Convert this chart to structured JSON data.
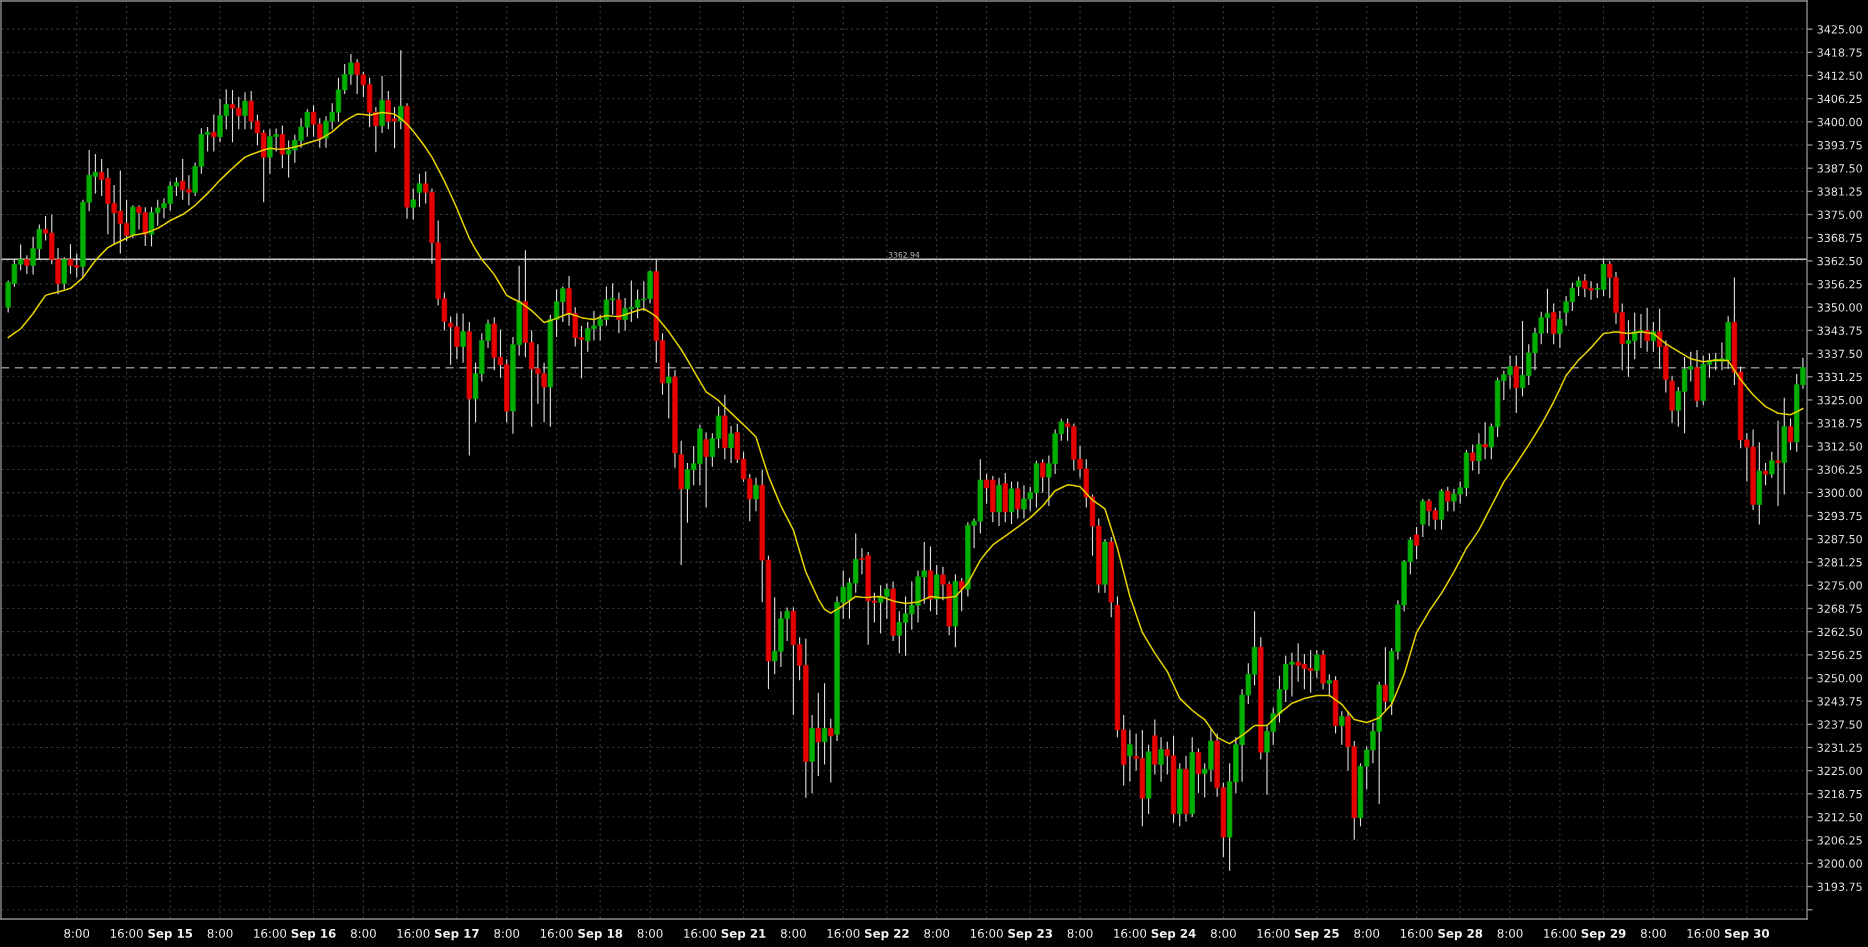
{
  "chart_data": {
    "type": "candlestick",
    "categories": [
      null,
      null,
      null,
      null,
      null,
      null,
      null,
      null,
      null,
      null,
      null,
      "8:00",
      null,
      null,
      null,
      null,
      null,
      null,
      null,
      "16:00",
      null,
      null,
      null,
      null,
      null,
      null,
      "Sep 15",
      null,
      null,
      null,
      null,
      null,
      null,
      null,
      "8:00",
      null,
      null,
      null,
      null,
      null,
      null,
      null,
      "16:00",
      null,
      null,
      null,
      null,
      null,
      null,
      "Sep 16",
      null,
      null,
      null,
      null,
      null,
      null,
      null,
      "8:00",
      null,
      null,
      null,
      null,
      null,
      null,
      null,
      "16:00",
      null,
      null,
      null,
      null,
      null,
      null,
      "Sep 17",
      null,
      null,
      null,
      null,
      null,
      null,
      null,
      "8:00",
      null,
      null,
      null,
      null,
      null,
      null,
      null,
      "16:00",
      null,
      null,
      null,
      null,
      null,
      null,
      "Sep 18",
      null,
      null,
      null,
      null,
      null,
      null,
      null,
      "8:00",
      null,
      null,
      null,
      null,
      null,
      null,
      null,
      "16:00",
      null,
      null,
      null,
      null,
      null,
      null,
      "Sep 21",
      null,
      null,
      null,
      null,
      null,
      null,
      null,
      "8:00",
      null,
      null,
      null,
      null,
      null,
      null,
      null,
      "16:00",
      null,
      null,
      null,
      null,
      null,
      null,
      "Sep 22",
      null,
      null,
      null,
      null,
      null,
      null,
      null,
      "8:00",
      null,
      null,
      null,
      null,
      null,
      null,
      null,
      "16:00",
      null,
      null,
      null,
      null,
      null,
      null,
      "Sep 23",
      null,
      null,
      null,
      null,
      null,
      null,
      null,
      "8:00",
      null,
      null,
      null,
      null,
      null,
      null,
      null,
      "16:00",
      null,
      null,
      null,
      null,
      null,
      null,
      "Sep 24",
      null,
      null,
      null,
      null,
      null,
      null,
      null,
      "8:00",
      null,
      null,
      null,
      null,
      null,
      null,
      null,
      "16:00",
      null,
      null,
      null,
      null,
      null,
      null,
      "Sep 25",
      null,
      null,
      null,
      null,
      null,
      null,
      null,
      "8:00",
      null,
      null,
      null,
      null,
      null,
      null,
      null,
      "16:00",
      null,
      null,
      null,
      null,
      null,
      null,
      "Sep 28",
      null,
      null,
      null,
      null,
      null,
      null,
      null,
      "8:00",
      null,
      null,
      null,
      null,
      null,
      null,
      null,
      "16:00",
      null,
      null,
      null,
      null,
      null,
      null,
      "Sep 29",
      null,
      null,
      null,
      null,
      null,
      null,
      null,
      "8:00",
      null,
      null,
      null,
      null,
      null,
      null,
      null,
      "16:00",
      null,
      null,
      null,
      null,
      null,
      null,
      "Sep 30",
      null,
      null,
      null,
      null,
      null,
      null,
      null,
      null,
      null
    ],
    "ohlc": [
      [
        3350,
        3357.2,
        3348.6,
        3356.7
      ],
      [
        3356.4,
        3362.9,
        3355.5,
        3361.6
      ],
      [
        3361.6,
        3366.9,
        3360,
        3362.9
      ],
      [
        3362.9,
        3364,
        3359,
        3361.3
      ],
      [
        3361.3,
        3369,
        3358.8,
        3365.8
      ],
      [
        3365.8,
        3372.3,
        3363,
        3371
      ],
      [
        3371,
        3374.6,
        3368,
        3370
      ],
      [
        3370,
        3375,
        3361.6,
        3362.9
      ],
      [
        3362.9,
        3366,
        3353.5,
        3356.4
      ],
      [
        3356.4,
        3363.5,
        3354.8,
        3362.9
      ],
      [
        3362.9,
        3367,
        3359,
        3361.3
      ],
      [
        3361.3,
        3364.5,
        3358,
        3360.8
      ],
      [
        3361,
        3379,
        3358,
        3378.3
      ],
      [
        3378.3,
        3392.4,
        3375.9,
        3385.6
      ],
      [
        3385.3,
        3391.3,
        3380.7,
        3386.4
      ],
      [
        3386.4,
        3390,
        3380,
        3384.5
      ],
      [
        3384.8,
        3387.5,
        3369.7,
        3378
      ],
      [
        3378,
        3383,
        3367,
        3375.5
      ],
      [
        3375.9,
        3386.9,
        3364.5,
        3372.6
      ],
      [
        3372.6,
        3379,
        3367.8,
        3369.4
      ],
      [
        3369.4,
        3377.5,
        3368.6,
        3377
      ],
      [
        3377,
        3377.5,
        3371,
        3375.5
      ],
      [
        3375.5,
        3377,
        3366.5,
        3369.7
      ],
      [
        3369.7,
        3377,
        3366.4,
        3375.5
      ],
      [
        3375.5,
        3379,
        3372,
        3376.8
      ],
      [
        3376.8,
        3379.4,
        3374,
        3378
      ],
      [
        3378,
        3384,
        3376,
        3382.7
      ],
      [
        3382.7,
        3385,
        3380,
        3383.6
      ],
      [
        3384,
        3390,
        3379,
        3381.7
      ],
      [
        3381.7,
        3385.6,
        3377.5,
        3381
      ],
      [
        3381,
        3389,
        3380,
        3388
      ],
      [
        3388,
        3398.3,
        3386,
        3396.6
      ],
      [
        3396.6,
        3398.6,
        3392,
        3397.2
      ],
      [
        3397.2,
        3402,
        3392,
        3396
      ],
      [
        3396,
        3406.2,
        3394.5,
        3401.7
      ],
      [
        3401.7,
        3408.8,
        3398,
        3404.7
      ],
      [
        3404.7,
        3408.6,
        3394.5,
        3403.7
      ],
      [
        3403.7,
        3406.7,
        3398,
        3401.7
      ],
      [
        3401.7,
        3408,
        3398,
        3405.6
      ],
      [
        3405.6,
        3408.3,
        3398,
        3400.2
      ],
      [
        3400.2,
        3402,
        3393.7,
        3397
      ],
      [
        3397,
        3397.8,
        3378.3,
        3390.5
      ],
      [
        3390.5,
        3398,
        3386,
        3396
      ],
      [
        3396,
        3398.2,
        3392,
        3396.6
      ],
      [
        3396.6,
        3399,
        3387.5,
        3391.3
      ],
      [
        3391.3,
        3395,
        3385,
        3392.4
      ],
      [
        3392.4,
        3396.5,
        3389,
        3395
      ],
      [
        3395,
        3401,
        3393,
        3398.6
      ],
      [
        3398.6,
        3403.4,
        3396,
        3402.6
      ],
      [
        3402.6,
        3404.5,
        3396,
        3399.4
      ],
      [
        3399.4,
        3401,
        3393,
        3395.6
      ],
      [
        3395.6,
        3401.5,
        3393,
        3400.2
      ],
      [
        3400.2,
        3405,
        3398,
        3402.6
      ],
      [
        3402.6,
        3411.9,
        3400,
        3408.6
      ],
      [
        3408.6,
        3415.6,
        3407.5,
        3412.8
      ],
      [
        3412.8,
        3418.3,
        3410,
        3415.9
      ],
      [
        3415.9,
        3416.9,
        3407.5,
        3412.7
      ],
      [
        3412.7,
        3413.5,
        3406.7,
        3410
      ],
      [
        3410,
        3411.9,
        3398.6,
        3402.6
      ],
      [
        3402.6,
        3404,
        3391.8,
        3399
      ],
      [
        3399,
        3412.4,
        3397,
        3405.8
      ],
      [
        3405.8,
        3408.3,
        3398,
        3400.2
      ],
      [
        3400.8,
        3404,
        3392.9,
        3400.2
      ],
      [
        3400.2,
        3419.3,
        3398,
        3404.2
      ],
      [
        3404.2,
        3405,
        3373.9,
        3377
      ],
      [
        3377,
        3382,
        3373.6,
        3379
      ],
      [
        3381,
        3386,
        3377,
        3383.3
      ],
      [
        3383.3,
        3386.6,
        3378,
        3381
      ],
      [
        3381,
        3382,
        3361.8,
        3367.4
      ],
      [
        3367.4,
        3373.4,
        3350.5,
        3352.3
      ],
      [
        3352.3,
        3354,
        3343.7,
        3346.2
      ],
      [
        3345.7,
        3347.5,
        3334.5,
        3344.7
      ],
      [
        3344.7,
        3348.3,
        3336,
        3339.4
      ],
      [
        3339.4,
        3348.3,
        3335,
        3343.4
      ],
      [
        3343.4,
        3346,
        3310,
        3325.3
      ],
      [
        3325.3,
        3335,
        3319,
        3332.1
      ],
      [
        3332.1,
        3343,
        3330,
        3341
      ],
      [
        3341,
        3346.7,
        3339,
        3345.5
      ],
      [
        3345.5,
        3347.3,
        3333,
        3336.5
      ],
      [
        3336.5,
        3344,
        3331,
        3334.5
      ],
      [
        3334.5,
        3336,
        3319,
        3322
      ],
      [
        3322,
        3342,
        3315.9,
        3339.9
      ],
      [
        3339.9,
        3361.2,
        3337,
        3351.5
      ],
      [
        3351.5,
        3365.4,
        3336.5,
        3340.5
      ],
      [
        3340.5,
        3343.7,
        3317.8,
        3333.4
      ],
      [
        3333.4,
        3340,
        3324,
        3332.1
      ],
      [
        3332.1,
        3335,
        3319,
        3328.5
      ],
      [
        3328.5,
        3348,
        3317.8,
        3346.7
      ],
      [
        3346.7,
        3354.8,
        3342,
        3351.5
      ],
      [
        3351.5,
        3355.6,
        3346,
        3355
      ],
      [
        3355,
        3358.4,
        3345,
        3348.3
      ],
      [
        3348.3,
        3350,
        3339.4,
        3341.8
      ],
      [
        3341.8,
        3345,
        3330.8,
        3341.3
      ],
      [
        3341,
        3346,
        3338,
        3344.2
      ],
      [
        3344.2,
        3349,
        3341,
        3345
      ],
      [
        3345,
        3348,
        3341,
        3346.7
      ],
      [
        3346.7,
        3355.6,
        3345,
        3352
      ],
      [
        3352,
        3356.5,
        3348,
        3352.3
      ],
      [
        3352,
        3354,
        3343,
        3346.7
      ],
      [
        3346.7,
        3352.5,
        3343.7,
        3349.6
      ],
      [
        3349.6,
        3357.2,
        3346,
        3350
      ],
      [
        3350,
        3354.8,
        3347,
        3352
      ],
      [
        3352,
        3357,
        3349,
        3352.2
      ],
      [
        3352.3,
        3360,
        3351,
        3359.6
      ],
      [
        3359.6,
        3362.9,
        3335,
        3341
      ],
      [
        3341,
        3343,
        3326.4,
        3329.6
      ],
      [
        3329.6,
        3335,
        3320,
        3331.2
      ],
      [
        3331.2,
        3333,
        3306.7,
        3310.7
      ],
      [
        3310.2,
        3314,
        3280.5,
        3301
      ],
      [
        3301,
        3308,
        3291.9,
        3306.2
      ],
      [
        3306.2,
        3312.6,
        3302,
        3307.8
      ],
      [
        3307.8,
        3318.3,
        3302,
        3317.2
      ],
      [
        3314.3,
        3316.3,
        3296,
        3309.7
      ],
      [
        3309.7,
        3316,
        3307,
        3314.6
      ],
      [
        3314.6,
        3323.2,
        3312,
        3320.7
      ],
      [
        3320.7,
        3326.4,
        3309,
        3312.1
      ],
      [
        3312.1,
        3318,
        3308,
        3315.9
      ],
      [
        3316.2,
        3318.6,
        3308,
        3309
      ],
      [
        3309,
        3311,
        3302.9,
        3303.7
      ],
      [
        3303.7,
        3305,
        3292.3,
        3298.3
      ],
      [
        3298.3,
        3304,
        3295,
        3302
      ],
      [
        3302,
        3306.2,
        3270.4,
        3281.8
      ],
      [
        3281.8,
        3283,
        3247,
        3254.6
      ],
      [
        3254.6,
        3271.8,
        3251,
        3257.2
      ],
      [
        3257.2,
        3268,
        3253,
        3266
      ],
      [
        3266,
        3269,
        3260,
        3268
      ],
      [
        3268,
        3269,
        3240,
        3259
      ],
      [
        3259,
        3261,
        3249.4,
        3253.4
      ],
      [
        3253.4,
        3260.6,
        3217.7,
        3227.5
      ],
      [
        3227.5,
        3240,
        3218.9,
        3236.4
      ],
      [
        3236.4,
        3246,
        3223.6,
        3232.8
      ],
      [
        3232.8,
        3248.6,
        3226.7,
        3236.4
      ],
      [
        3236.4,
        3239,
        3221.8,
        3234.4
      ],
      [
        3234.8,
        3272,
        3233,
        3270.4
      ],
      [
        3270.4,
        3279,
        3266,
        3274.5
      ],
      [
        3271,
        3277,
        3266,
        3275.6
      ],
      [
        3275.6,
        3289,
        3273,
        3282
      ],
      [
        3282.3,
        3285,
        3278,
        3282
      ],
      [
        3283,
        3284,
        3259,
        3270.8
      ],
      [
        3270.8,
        3273,
        3265,
        3270.4
      ],
      [
        3270.4,
        3275,
        3262,
        3272
      ],
      [
        3272,
        3275.5,
        3266,
        3274
      ],
      [
        3274,
        3276,
        3260,
        3261.5
      ],
      [
        3261.5,
        3268,
        3256.7,
        3265
      ],
      [
        3265,
        3272,
        3256,
        3267.3
      ],
      [
        3267.3,
        3276,
        3263,
        3269.6
      ],
      [
        3269.6,
        3279,
        3265,
        3277.3
      ],
      [
        3277.3,
        3286.7,
        3270,
        3278.9
      ],
      [
        3278.9,
        3285.5,
        3268,
        3271.3
      ],
      [
        3271.3,
        3280.5,
        3267,
        3277.8
      ],
      [
        3277.8,
        3280,
        3271,
        3275.3
      ],
      [
        3275.3,
        3276,
        3261.5,
        3264
      ],
      [
        3264,
        3278,
        3258.3,
        3276.1
      ],
      [
        3276.1,
        3277,
        3268,
        3274
      ],
      [
        3274,
        3292,
        3272,
        3291.2
      ],
      [
        3291.2,
        3293,
        3285,
        3292.3
      ],
      [
        3292.3,
        3309,
        3289,
        3303.4
      ],
      [
        3303.4,
        3305,
        3297,
        3301.3
      ],
      [
        3303.4,
        3304.5,
        3292,
        3294.8
      ],
      [
        3294.8,
        3304,
        3291,
        3302
      ],
      [
        3302.4,
        3305.3,
        3292,
        3294.8
      ],
      [
        3294.8,
        3303,
        3291.5,
        3301
      ],
      [
        3301,
        3303,
        3293,
        3295.6
      ],
      [
        3295.6,
        3302,
        3293,
        3298.3
      ],
      [
        3298.3,
        3301.6,
        3295,
        3300
      ],
      [
        3300,
        3308.6,
        3296,
        3307.8
      ],
      [
        3308,
        3309,
        3300,
        3304.2
      ],
      [
        3304.2,
        3310,
        3296.4,
        3307.8
      ],
      [
        3307.8,
        3317,
        3305,
        3315.9
      ],
      [
        3315.9,
        3319.9,
        3314,
        3319.1
      ],
      [
        3318.6,
        3320,
        3314,
        3317.8
      ],
      [
        3317.8,
        3318.6,
        3306,
        3309
      ],
      [
        3309,
        3312.6,
        3304,
        3306.4
      ],
      [
        3306.4,
        3309,
        3296,
        3298.8
      ],
      [
        3298.8,
        3299.5,
        3283,
        3291
      ],
      [
        3291,
        3293,
        3273,
        3275.3
      ],
      [
        3275.3,
        3287.5,
        3273,
        3286.7
      ],
      [
        3286.7,
        3288,
        3266.4,
        3270.5
      ],
      [
        3269.6,
        3272,
        3234,
        3236
      ],
      [
        3236,
        3240,
        3221,
        3226.7
      ],
      [
        3229,
        3236,
        3222,
        3232
      ],
      [
        3228.8,
        3235,
        3225,
        3228.3
      ],
      [
        3228.3,
        3236,
        3210,
        3217.6
      ],
      [
        3217.6,
        3232,
        3213.3,
        3230.1
      ],
      [
        3234.4,
        3238.8,
        3224,
        3226.7
      ],
      [
        3226.7,
        3234,
        3222,
        3230.7
      ],
      [
        3230.7,
        3232.8,
        3224,
        3229
      ],
      [
        3229,
        3234.4,
        3211,
        3213.4
      ],
      [
        3213.4,
        3227,
        3210,
        3225.4
      ],
      [
        3225.4,
        3229,
        3211.3,
        3213.4
      ],
      [
        3213.4,
        3234,
        3212.5,
        3229.9
      ],
      [
        3229.9,
        3231,
        3219,
        3224.2
      ],
      [
        3224.2,
        3227,
        3217.8,
        3225.4
      ],
      [
        3225.4,
        3236.4,
        3222,
        3233
      ],
      [
        3233,
        3235,
        3218,
        3220.4
      ],
      [
        3220.4,
        3221.8,
        3201.7,
        3207.1
      ],
      [
        3207.1,
        3227,
        3198,
        3222
      ],
      [
        3222,
        3234,
        3219,
        3232
      ],
      [
        3232,
        3247,
        3222,
        3245.4
      ],
      [
        3245.4,
        3254,
        3243,
        3251
      ],
      [
        3251,
        3268,
        3248,
        3258.3
      ],
      [
        3258.3,
        3261,
        3228,
        3230
      ],
      [
        3230,
        3237,
        3218.5,
        3235.6
      ],
      [
        3235.6,
        3242,
        3232,
        3240.4
      ],
      [
        3240.4,
        3250.6,
        3238,
        3246.9
      ],
      [
        3246.9,
        3256,
        3243.5,
        3253.7
      ],
      [
        3253.7,
        3256.8,
        3245,
        3254.3
      ],
      [
        3254.3,
        3259.4,
        3249,
        3253.4
      ],
      [
        3253.7,
        3256.5,
        3247,
        3252.6
      ],
      [
        3252.6,
        3257.5,
        3246,
        3252
      ],
      [
        3252,
        3257.5,
        3250,
        3256.2
      ],
      [
        3256.2,
        3257.5,
        3247,
        3248.6
      ],
      [
        3248.6,
        3251,
        3245,
        3249.3
      ],
      [
        3249.3,
        3250.5,
        3235,
        3237.2
      ],
      [
        3237.2,
        3241,
        3232,
        3239.6
      ],
      [
        3239.6,
        3241,
        3225,
        3231.5
      ],
      [
        3231.5,
        3233,
        3206.4,
        3212.3
      ],
      [
        3212.3,
        3227,
        3210,
        3226.2
      ],
      [
        3226.2,
        3231.5,
        3220,
        3230.6
      ],
      [
        3230.6,
        3238,
        3227,
        3235.6
      ],
      [
        3235.6,
        3249,
        3216,
        3248.1
      ],
      [
        3248.1,
        3258.3,
        3241,
        3243.7
      ],
      [
        3243.7,
        3258,
        3240,
        3257.2
      ],
      [
        3257.2,
        3271,
        3255,
        3269.7
      ],
      [
        3269.7,
        3281.8,
        3268,
        3281.4
      ],
      [
        3281.4,
        3288,
        3278,
        3287.2
      ],
      [
        3288.6,
        3290.7,
        3282,
        3285.8
      ],
      [
        3291.5,
        3298.3,
        3288,
        3297.7
      ],
      [
        3297.7,
        3298.3,
        3291,
        3295.1
      ],
      [
        3295.1,
        3296,
        3290,
        3292.8
      ],
      [
        3292.8,
        3301,
        3290,
        3300.4
      ],
      [
        3300.4,
        3301.6,
        3295,
        3297.7
      ],
      [
        3297.7,
        3301,
        3295,
        3299.6
      ],
      [
        3299.6,
        3303,
        3297,
        3301.3
      ],
      [
        3301.3,
        3311.5,
        3299,
        3310.7
      ],
      [
        3310.7,
        3313,
        3306,
        3308.6
      ],
      [
        3308.6,
        3316,
        3305,
        3313
      ],
      [
        3313,
        3319,
        3309,
        3312.3
      ],
      [
        3312.3,
        3318.6,
        3309,
        3317.8
      ],
      [
        3317.8,
        3331,
        3315,
        3330.2
      ],
      [
        3330.2,
        3332.9,
        3325,
        3331.8
      ],
      [
        3331.8,
        3337,
        3328,
        3334
      ],
      [
        3334,
        3337,
        3321.5,
        3328.3
      ],
      [
        3328.3,
        3346.3,
        3326,
        3331.6
      ],
      [
        3331.6,
        3340,
        3329,
        3337.7
      ],
      [
        3337.7,
        3344.5,
        3333,
        3343
      ],
      [
        3343,
        3348.8,
        3340,
        3347.2
      ],
      [
        3347.2,
        3355,
        3343,
        3348.3
      ],
      [
        3348.6,
        3351,
        3340,
        3342.9
      ],
      [
        3342.9,
        3349,
        3339,
        3346.7
      ],
      [
        3348.6,
        3353,
        3345,
        3351.5
      ],
      [
        3351.5,
        3356.7,
        3349,
        3355.1
      ],
      [
        3355.6,
        3358.2,
        3353,
        3357.1
      ],
      [
        3357.1,
        3359,
        3352.7,
        3355.1
      ],
      [
        3355.1,
        3357,
        3352,
        3354.6
      ],
      [
        3354.8,
        3356.5,
        3352.5,
        3355.1
      ],
      [
        3354.8,
        3363.2,
        3353,
        3361.6
      ],
      [
        3361.6,
        3362.5,
        3352.5,
        3358
      ],
      [
        3358,
        3359.5,
        3345.5,
        3348.6
      ],
      [
        3348.6,
        3351,
        3333,
        3340.2
      ],
      [
        3340.2,
        3346.5,
        3331.2,
        3341
      ],
      [
        3341,
        3348.5,
        3336,
        3343.4
      ],
      [
        3343.4,
        3348.2,
        3339,
        3343.7
      ],
      [
        3343.7,
        3349.8,
        3338,
        3341
      ],
      [
        3341,
        3346,
        3338,
        3343.4
      ],
      [
        3343.4,
        3349.6,
        3333.4,
        3339.4
      ],
      [
        3339.4,
        3341,
        3327,
        3330.5
      ],
      [
        3330.1,
        3331.5,
        3318.7,
        3322.2
      ],
      [
        3322.2,
        3328.5,
        3317.8,
        3327.3
      ],
      [
        3327.3,
        3336.6,
        3316,
        3333.3
      ],
      [
        3333.3,
        3338,
        3330,
        3334
      ],
      [
        3333.7,
        3338.5,
        3323,
        3324.8
      ],
      [
        3324.8,
        3337,
        3323.6,
        3334.6
      ],
      [
        3334.6,
        3337.6,
        3331,
        3335.7
      ],
      [
        3335.4,
        3337.7,
        3333,
        3336
      ],
      [
        3335.4,
        3340.5,
        3333,
        3336.1
      ],
      [
        3335.7,
        3347.6,
        3333.4,
        3345.9
      ],
      [
        3345.9,
        3358,
        3329,
        3332.5
      ],
      [
        3332.5,
        3334,
        3312,
        3314.2
      ],
      [
        3314.2,
        3316,
        3303,
        3312.3
      ],
      [
        3312.3,
        3317,
        3295.3,
        3296.8
      ],
      [
        3296.8,
        3313.6,
        3291.4,
        3305.8
      ],
      [
        3305.8,
        3308,
        3302,
        3305
      ],
      [
        3305,
        3311,
        3304,
        3308.6
      ],
      [
        3308.6,
        3319.4,
        3296.4,
        3308.1
      ],
      [
        3308.1,
        3325.6,
        3299.5,
        3317.8
      ],
      [
        3317.8,
        3320,
        3311.5,
        3313.7
      ],
      [
        3313.7,
        3332,
        3311,
        3329.1
      ],
      [
        3329.1,
        3336.4,
        3328,
        3333.7
      ]
    ],
    "colors": [
      "#00b000",
      "#00b000",
      "#00b000",
      "#e60000",
      "#00b000",
      "#00b000",
      "#e60000",
      "#e60000",
      "#e60000",
      "#00b000",
      "#e60000",
      "#e60000",
      "#00b000",
      "#00b000",
      "#00b000",
      "#e60000",
      "#e60000",
      "#e60000",
      "#e60000",
      "#e60000",
      "#00b000",
      "#e60000",
      "#e60000",
      "#00b000",
      "#00b000",
      "#00b000",
      "#00b000",
      "#00b000",
      "#e60000",
      "#e60000",
      "#00b000",
      "#00b000",
      "#00b000",
      "#e60000",
      "#00b000",
      "#00b000",
      "#e60000",
      "#e60000",
      "#00b000",
      "#e60000",
      "#e60000",
      "#e60000",
      "#00b000",
      "#00b000",
      "#e60000",
      "#00b000",
      "#00b000",
      "#00b000",
      "#00b000",
      "#e60000",
      "#e60000",
      "#00b000",
      "#00b000",
      "#00b000",
      "#00b000",
      "#00b000",
      "#e60000",
      "#e60000",
      "#e60000",
      "#e60000",
      "#00b000",
      "#e60000",
      "#e60000",
      "#00b000",
      "#e60000",
      "#00b000",
      "#00b000",
      "#e60000",
      "#e60000",
      "#e60000",
      "#e60000",
      "#e60000",
      "#e60000",
      "#00b000",
      "#e60000",
      "#00b000",
      "#00b000",
      "#00b000",
      "#e60000",
      "#e60000",
      "#e60000",
      "#00b000",
      "#00b000",
      "#e60000",
      "#e60000",
      "#e60000",
      "#e60000",
      "#00b000",
      "#00b000",
      "#00b000",
      "#e60000",
      "#e60000",
      "#e60000",
      "#00b000",
      "#00b000",
      "#00b000",
      "#00b000",
      "#00b000",
      "#e60000",
      "#00b000",
      "#00b000",
      "#00b000",
      "#00b000",
      "#00b000",
      "#e60000",
      "#e60000",
      "#00b000",
      "#e60000",
      "#e60000",
      "#00b000",
      "#00b000",
      "#00b000",
      "#e60000",
      "#00b000",
      "#00b000",
      "#e60000",
      "#00b000",
      "#e60000",
      "#e60000",
      "#e60000",
      "#00b000",
      "#e60000",
      "#e60000",
      "#00b000",
      "#00b000",
      "#00b000",
      "#e60000",
      "#e60000",
      "#e60000",
      "#00b000",
      "#e60000",
      "#00b000",
      "#e60000",
      "#00b000",
      "#00b000",
      "#00b000",
      "#00b000",
      "#e60000",
      "#e60000",
      "#e60000",
      "#00b000",
      "#00b000",
      "#e60000",
      "#00b000",
      "#00b000",
      "#00b000",
      "#00b000",
      "#00b000",
      "#e60000",
      "#00b000",
      "#e60000",
      "#e60000",
      "#00b000",
      "#e60000",
      "#00b000",
      "#00b000",
      "#00b000",
      "#e60000",
      "#e60000",
      "#00b000",
      "#e60000",
      "#00b000",
      "#e60000",
      "#00b000",
      "#00b000",
      "#00b000",
      "#e60000",
      "#00b000",
      "#00b000",
      "#00b000",
      "#e60000",
      "#e60000",
      "#e60000",
      "#e60000",
      "#e60000",
      "#e60000",
      "#00b000",
      "#e60000",
      "#e60000",
      "#e60000",
      "#00b000",
      "#e60000",
      "#e60000",
      "#00b000",
      "#e60000",
      "#00b000",
      "#e60000",
      "#e60000",
      "#00b000",
      "#e60000",
      "#00b000",
      "#e60000",
      "#00b000",
      "#00b000",
      "#e60000",
      "#e60000",
      "#00b000",
      "#00b000",
      "#00b000",
      "#00b000",
      "#00b000",
      "#e60000",
      "#00b000",
      "#00b000",
      "#00b000",
      "#00b000",
      "#00b000",
      "#e60000",
      "#e60000",
      "#e60000",
      "#00b000",
      "#e60000",
      "#00b000",
      "#e60000",
      "#00b000",
      "#e60000",
      "#e60000",
      "#00b000",
      "#00b000",
      "#00b000",
      "#00b000",
      "#e60000",
      "#00b000",
      "#00b000",
      "#00b000",
      "#00b000",
      "#e60000",
      "#00b000",
      "#e60000",
      "#e60000",
      "#00b000",
      "#e60000",
      "#00b000",
      "#00b000",
      "#00b000",
      "#e60000",
      "#00b000",
      "#e60000",
      "#00b000",
      "#00b000",
      "#00b000",
      "#00b000",
      "#e60000",
      "#00b000",
      "#00b000",
      "#00b000",
      "#00b000",
      "#00b000",
      "#e60000",
      "#00b000",
      "#00b000",
      "#00b000",
      "#00b000",
      "#e60000",
      "#e60000",
      "#00b000",
      "#00b000",
      "#e60000",
      "#e60000",
      "#e60000",
      "#00b000",
      "#00b000",
      "#00b000",
      "#e60000",
      "#00b000",
      "#e60000",
      "#e60000",
      "#e60000",
      "#00b000",
      "#00b000",
      "#00b000",
      "#e60000",
      "#00b000",
      "#00b000",
      "#00b000",
      "#00b000",
      "#00b000",
      "#e60000",
      "#e60000",
      "#e60000",
      "#e60000",
      "#00b000",
      "#e60000",
      "#00b000",
      "#e60000",
      "#00b000",
      "#e60000",
      "#00b000",
      "#00b000"
    ],
    "series": [
      {
        "type": "line",
        "color": "#e6d200",
        "values": [
          3341.8,
          3343.0,
          3344.2,
          3346.2,
          3348.3,
          3350.8,
          3353.2,
          3353.7,
          3354.1,
          3354.6,
          3355.1,
          3356.5,
          3358.0,
          3360.3,
          3362.6,
          3364.4,
          3366.1,
          3367.0,
          3367.8,
          3368.6,
          3369.4,
          3369.7,
          3370.0,
          3370.6,
          3371.3,
          3372.3,
          3373.4,
          3374.2,
          3375.0,
          3376.2,
          3377.5,
          3379.1,
          3380.7,
          3382.5,
          3384.3,
          3385.9,
          3387.5,
          3389.0,
          3390.5,
          3391.2,
          3391.8,
          3392.4,
          3392.9,
          3392.7,
          3392.6,
          3392.9,
          3393.2,
          3393.7,
          3394.3,
          3394.8,
          3395.3,
          3396.3,
          3397.3,
          3398.8,
          3400.2,
          3401.2,
          3402.1,
          3402.0,
          3401.8,
          3402.2,
          3402.5,
          3402.3,
          3402.1,
          3400.9,
          3399.4,
          3397.5,
          3395.3,
          3393.0,
          3390.5,
          3387.3,
          3384.0,
          3380.4,
          3376.7,
          3372.6,
          3368.6,
          3365.6,
          3362.9,
          3360.9,
          3358.8,
          3356.0,
          3353.2,
          3352.3,
          3351.5,
          3350.3,
          3349.1,
          3347.5,
          3345.9,
          3346.4,
          3347.0,
          3347.7,
          3348.3,
          3347.8,
          3347.2,
          3346.9,
          3346.7,
          3347.3,
          3347.8,
          3347.6,
          3347.5,
          3348.0,
          3348.6,
          3349.1,
          3349.6,
          3348.6,
          3347.5,
          3345.5,
          3343.4,
          3341.0,
          3338.6,
          3335.8,
          3332.9,
          3330.0,
          3327.2,
          3326.0,
          3324.8,
          3323.1,
          3321.5,
          3319.9,
          3318.3,
          3316.7,
          3315.0,
          3309.7,
          3304.5,
          3300.4,
          3296.4,
          3293.2,
          3289.9,
          3284.2,
          3278.6,
          3274.9,
          3271.3,
          3268.5,
          3267.5,
          3268.5,
          3269.6,
          3270.8,
          3272.0,
          3271.8,
          3271.7,
          3271.9,
          3272.0,
          3271.4,
          3270.8,
          3270.4,
          3270.1,
          3270.3,
          3270.5,
          3271.2,
          3272.0,
          3271.8,
          3271.6,
          3271.8,
          3272.0,
          3273.8,
          3275.6,
          3278.7,
          3281.8,
          3283.9,
          3285.9,
          3287.1,
          3288.3,
          3289.5,
          3290.7,
          3292.0,
          3293.2,
          3294.8,
          3296.4,
          3298.4,
          3300.5,
          3301.3,
          3302.1,
          3301.9,
          3301.6,
          3299.8,
          3298.0,
          3296.8,
          3295.6,
          3290.3,
          3285.0,
          3278.5,
          3272.0,
          3267.1,
          3262.3,
          3259.5,
          3256.7,
          3254.2,
          3251.8,
          3248.1,
          3244.5,
          3242.9,
          3241.3,
          3240.0,
          3238.8,
          3236.4,
          3234.0,
          3233.1,
          3232.3,
          3233.4,
          3234.5,
          3235.8,
          3237.2,
          3237.2,
          3237.2,
          3238.8,
          3240.5,
          3241.8,
          3243.2,
          3243.8,
          3244.5,
          3244.9,
          3245.3,
          3245.3,
          3245.3,
          3244.1,
          3242.9,
          3240.8,
          3238.8,
          3238.4,
          3238.0,
          3238.6,
          3239.3,
          3241.1,
          3242.9,
          3246.9,
          3251.0,
          3256.6,
          3262.3,
          3265.1,
          3268.0,
          3270.4,
          3272.9,
          3275.7,
          3278.6,
          3281.8,
          3285.0,
          3287.4,
          3289.9,
          3293.1,
          3296.4,
          3299.6,
          3302.9,
          3305.3,
          3307.8,
          3310.3,
          3312.9,
          3315.6,
          3318.3,
          3321.4,
          3324.5,
          3328.0,
          3331.6,
          3333.7,
          3335.8,
          3337.4,
          3339.1,
          3341.0,
          3342.9,
          3343.1,
          3343.4,
          3343.1,
          3342.9,
          3343.1,
          3343.4,
          3343.1,
          3342.9,
          3341.5,
          3340.2,
          3339.1,
          3338.1,
          3337.1,
          3336.1,
          3335.7,
          3335.3,
          3335.5,
          3335.8,
          3335.7,
          3335.6,
          3333.0,
          3330.5,
          3328.4,
          3326.4,
          3324.8,
          3323.2,
          3322.3,
          3321.4,
          3321.2,
          3321.0,
          3321.8,
          3322.7
        ]
      }
    ],
    "ylim": [
      3185,
      3432.6
    ],
    "yticks": [
      {
        "value": 3187.5,
        "label": null
      },
      3193.75,
      {
        "value": 3200,
        "label": "3200.00"
      },
      3206.25,
      {
        "value": 3212.5,
        "label": "3212.50"
      },
      3218.75,
      {
        "value": 3225,
        "label": "3225.00"
      },
      3231.25,
      {
        "value": 3237.5,
        "label": "3237.50"
      },
      3243.75,
      {
        "value": 3250,
        "label": "3250.00"
      },
      3256.25,
      {
        "value": 3262.5,
        "label": "3262.50"
      },
      3268.75,
      {
        "value": 3275,
        "label": "3275.00"
      },
      3281.25,
      {
        "value": 3287.5,
        "label": "3287.50"
      },
      3293.75,
      {
        "value": 3300,
        "label": "3300.00"
      },
      3306.25,
      {
        "value": 3312.5,
        "label": "3312.50"
      },
      3318.75,
      {
        "value": 3325,
        "label": "3325.00"
      },
      3331.25,
      {
        "value": 3337.5,
        "label": "3337.50"
      },
      3343.75,
      {
        "value": 3350,
        "label": "3350.00"
      },
      3356.25,
      {
        "value": 3362.5,
        "label": "3362.50"
      },
      3368.75,
      {
        "value": 3375,
        "label": "3375.00"
      },
      3381.25,
      {
        "value": 3387.5,
        "label": "3387.50"
      },
      3393.75,
      {
        "value": 3400,
        "label": "3400.00"
      },
      3406.25,
      {
        "value": 3412.5,
        "label": "3412.50"
      },
      3418.75,
      {
        "value": 3425,
        "label": "3425.00"
      }
    ],
    "ref_lines": [
      {
        "axis": "y",
        "value": 3362.94,
        "label": "3362.94",
        "color": "#c8c8c8",
        "line_style": "solid"
      },
      {
        "axis": "y",
        "value": 3333.7,
        "color": "#8a8a8a",
        "line_style": "dashed"
      }
    ],
    "grid": true
  }
}
